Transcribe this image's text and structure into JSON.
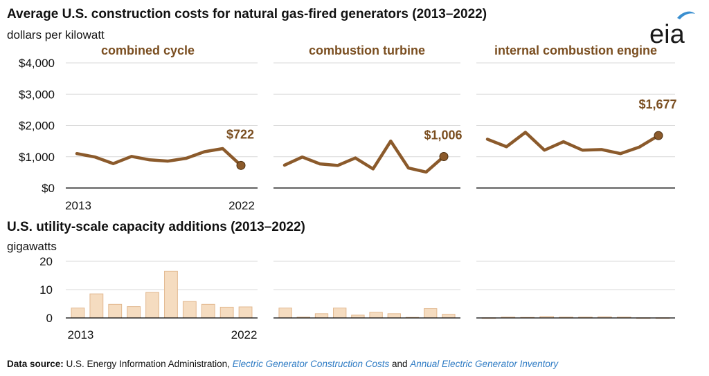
{
  "header": {
    "title": "Average U.S. construction costs for natural gas-fired generators (2013–2022)",
    "subtitle": "dollars per kilowatt",
    "title2": "U.S. utility-scale capacity additions (2013–2022)",
    "subtitle2": "gigawatts"
  },
  "logo": {
    "text": "eia"
  },
  "source": {
    "label": "Data source:",
    "text1": " U.S. Energy Information Administration, ",
    "link1": "Electric Generator Construction Costs",
    "text2": " and ",
    "link2": "Annual Electric Generator Inventory"
  },
  "colors": {
    "line": "#8b5a2b",
    "label": "#7a4e20",
    "bar_fill": "#f5dcc0",
    "bar_stroke": "#e2b88f",
    "grid": "#d9d9d9",
    "axis": "#000000",
    "logo_swoosh": "#3a8fd0"
  },
  "chart_data": [
    {
      "type": "line",
      "title": "combined cycle",
      "x": [
        2013,
        2014,
        2015,
        2016,
        2017,
        2018,
        2019,
        2020,
        2021,
        2022
      ],
      "values": [
        1100,
        990,
        780,
        1010,
        900,
        860,
        950,
        1160,
        1260,
        722
      ],
      "end_label": "$722",
      "ylim": [
        0,
        4000
      ],
      "yticks": [
        "$0",
        "$1,000",
        "$2,000",
        "$3,000",
        "$4,000"
      ],
      "xtick_labels": [
        "2013",
        "2022"
      ],
      "grid": true
    },
    {
      "type": "line",
      "title": "combustion turbine",
      "x": [
        2013,
        2014,
        2015,
        2016,
        2017,
        2018,
        2019,
        2020,
        2021,
        2022
      ],
      "values": [
        730,
        990,
        770,
        720,
        960,
        610,
        1500,
        640,
        510,
        1006
      ],
      "end_label": "$1,006",
      "ylim": [
        0,
        4000
      ],
      "grid": true
    },
    {
      "type": "line",
      "title": "internal combustion engine",
      "x": [
        2013,
        2014,
        2015,
        2016,
        2017,
        2018,
        2019,
        2020,
        2021,
        2022
      ],
      "values": [
        1560,
        1320,
        1780,
        1210,
        1480,
        1210,
        1230,
        1100,
        1310,
        1677
      ],
      "end_label": "$1,677",
      "ylim": [
        0,
        4000
      ],
      "grid": true
    },
    {
      "type": "bar",
      "categories": [
        "2013",
        "2014",
        "2015",
        "2016",
        "2017",
        "2018",
        "2019",
        "2020",
        "2021",
        "2022"
      ],
      "values": [
        3.5,
        8.5,
        4.8,
        4.0,
        9.0,
        16.5,
        5.8,
        4.8,
        3.8,
        3.9
      ],
      "ylim": [
        0,
        20
      ],
      "yticks": [
        "0",
        "10",
        "20"
      ],
      "xtick_labels": [
        "2013",
        "2022"
      ],
      "grid": true
    },
    {
      "type": "bar",
      "categories": [
        "2013",
        "2014",
        "2015",
        "2016",
        "2017",
        "2018",
        "2019",
        "2020",
        "2021",
        "2022"
      ],
      "values": [
        3.5,
        0.3,
        1.5,
        3.5,
        1.0,
        2.0,
        1.5,
        0.2,
        3.3,
        1.3
      ],
      "ylim": [
        0,
        20
      ],
      "grid": true
    },
    {
      "type": "bar",
      "categories": [
        "2013",
        "2014",
        "2015",
        "2016",
        "2017",
        "2018",
        "2019",
        "2020",
        "2021",
        "2022"
      ],
      "values": [
        0.05,
        0.3,
        0.2,
        0.5,
        0.3,
        0.3,
        0.4,
        0.3,
        0.05,
        0.05
      ],
      "ylim": [
        0,
        20
      ],
      "grid": true
    }
  ]
}
